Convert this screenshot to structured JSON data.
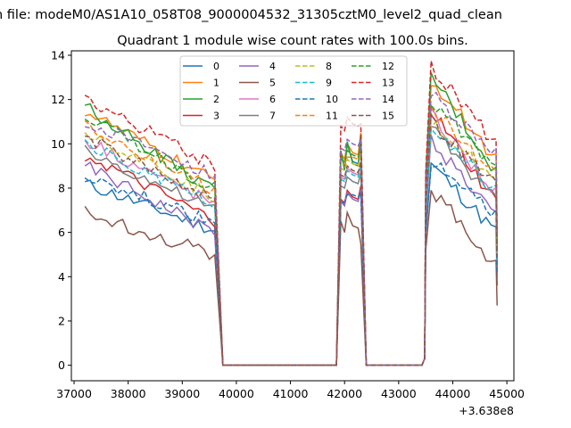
{
  "chart_data": {
    "type": "line",
    "suptitle": "n file: modeM0/AS1A10_058T08_9000004532_31305cztM0_level2_quad_clean",
    "title": "Quadrant 1 module wise count rates with 100.0s bins.",
    "x_offset_label": "+3.638e8",
    "xlabel": "",
    "ylabel": "",
    "xlim": [
      36950,
      45130
    ],
    "ylim": [
      -0.7,
      14.2
    ],
    "x_ticks": [
      37000,
      38000,
      39000,
      40000,
      41000,
      42000,
      43000,
      44000,
      45000
    ],
    "x_tick_labels": [
      "37000",
      "38000",
      "39000",
      "40000",
      "41000",
      "42000",
      "43000",
      "44000",
      "45000"
    ],
    "y_ticks": [
      0,
      2,
      4,
      6,
      8,
      10,
      12,
      14
    ],
    "y_tick_labels": [
      "0",
      "2",
      "4",
      "6",
      "8",
      "10",
      "12",
      "14"
    ],
    "legend_position": "upper-center",
    "legend_columns": 4,
    "series": [
      {
        "name": "0",
        "color": "#1f77b4",
        "dash": "solid",
        "seg1_start": 8.2,
        "seg1_end": 6.1,
        "seg2": [
          9.6,
          8.9,
          9.8
        ],
        "seg3_peak": 9.1,
        "seg3_end": 6.0
      },
      {
        "name": "1",
        "color": "#ff7f0e",
        "dash": "solid",
        "seg1_start": 11.5,
        "seg1_end": 8.3,
        "seg2": [
          9.6,
          9.3,
          10.5
        ],
        "seg3_peak": 12.9,
        "seg3_end": 9.3
      },
      {
        "name": "2",
        "color": "#2ca02c",
        "dash": "solid",
        "seg1_start": 11.7,
        "seg1_end": 7.8,
        "seg2": [
          9.7,
          8.8,
          10.4
        ],
        "seg3_peak": 13.1,
        "seg3_end": 8.7
      },
      {
        "name": "3",
        "color": "#d62728",
        "dash": "solid",
        "seg1_start": 9.5,
        "seg1_end": 6.5,
        "seg2": [
          7.5,
          7.3,
          8.1
        ],
        "seg3_peak": 11.5,
        "seg3_end": 7.3
      },
      {
        "name": "4",
        "color": "#9467bd",
        "dash": "solid",
        "seg1_start": 9.0,
        "seg1_end": 6.0,
        "seg2": [
          7.4,
          7.2,
          7.9
        ],
        "seg3_peak": 10.2,
        "seg3_end": 6.7
      },
      {
        "name": "5",
        "color": "#8c564b",
        "dash": "solid",
        "seg1_start": 6.9,
        "seg1_end": 5.0,
        "seg2": [
          6.5,
          6.0,
          5.5
        ],
        "seg3_peak": 8.0,
        "seg3_end": 4.5
      },
      {
        "name": "6",
        "color": "#e377c2",
        "dash": "solid",
        "seg1_start": 10.2,
        "seg1_end": 7.3,
        "seg2": [
          8.5,
          8.4,
          9.1
        ],
        "seg3_peak": 11.3,
        "seg3_end": 7.8
      },
      {
        "name": "7",
        "color": "#7f7f7f",
        "dash": "solid",
        "seg1_start": 9.7,
        "seg1_end": 7.0,
        "seg2": [
          8.1,
          8.0,
          8.7
        ],
        "seg3_peak": 10.8,
        "seg3_end": 7.4
      },
      {
        "name": "8",
        "color": "#bcbd22",
        "dash": "dashed",
        "seg1_start": 10.6,
        "seg1_end": 7.6,
        "seg2": [
          8.9,
          8.8,
          9.5
        ],
        "seg3_peak": 11.1,
        "seg3_end": 8.2
      },
      {
        "name": "9",
        "color": "#17becf",
        "dash": "dashed",
        "seg1_start": 10.0,
        "seg1_end": 7.2,
        "seg2": [
          8.4,
          8.3,
          9.0
        ],
        "seg3_peak": 10.6,
        "seg3_end": 7.9
      },
      {
        "name": "10",
        "color": "#1f77b4",
        "dash": "dashed",
        "seg1_start": 8.6,
        "seg1_end": 6.4,
        "seg2": [
          7.3,
          7.4,
          7.8
        ],
        "seg3_peak": 9.2,
        "seg3_end": 6.8
      },
      {
        "name": "11",
        "color": "#ff7f0e",
        "dash": "dashed",
        "seg1_start": 10.9,
        "seg1_end": 7.9,
        "seg2": [
          9.0,
          9.1,
          9.7
        ],
        "seg3_peak": 11.6,
        "seg3_end": 8.5
      },
      {
        "name": "12",
        "color": "#2ca02c",
        "dash": "dashed",
        "seg1_start": 11.3,
        "seg1_end": 8.0,
        "seg2": [
          9.3,
          9.2,
          9.9
        ],
        "seg3_peak": 11.9,
        "seg3_end": 8.8
      },
      {
        "name": "13",
        "color": "#d62728",
        "dash": "dashed",
        "seg1_start": 12.1,
        "seg1_end": 9.0,
        "seg2": [
          10.8,
          10.6,
          10.9
        ],
        "seg3_peak": 13.5,
        "seg3_end": 10.0
      },
      {
        "name": "14",
        "color": "#9467bd",
        "dash": "dashed",
        "seg1_start": 11.0,
        "seg1_end": 8.6,
        "seg2": [
          9.8,
          9.7,
          10.2
        ],
        "seg3_peak": 12.2,
        "seg3_end": 9.6
      },
      {
        "name": "15",
        "color": "#8c564b",
        "dash": "dashed",
        "seg1_start": 10.3,
        "seg1_end": 7.5,
        "seg2": [
          8.6,
          8.5,
          9.2
        ],
        "seg3_peak": 11.0,
        "seg3_end": 8.1
      }
    ],
    "segments": {
      "seg1_x": [
        37200,
        39600
      ],
      "drop_x": [
        39700,
        39750
      ],
      "zero1_x": [
        39750,
        41850
      ],
      "seg2_x": [
        41900,
        42050,
        42300
      ],
      "zero2_x": [
        42500,
        43350
      ],
      "seg3_x": [
        43500,
        43600,
        44800
      ]
    }
  }
}
